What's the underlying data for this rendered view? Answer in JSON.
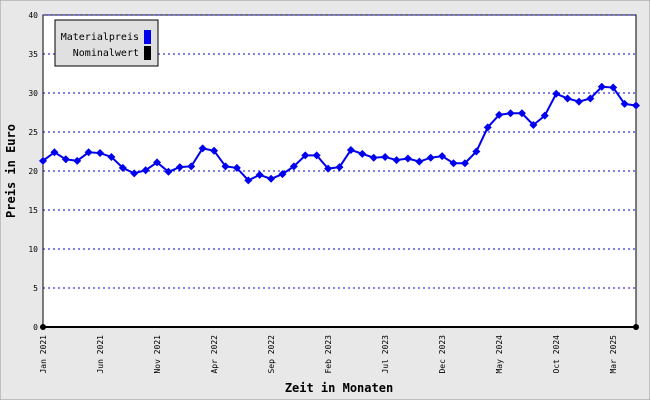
{
  "chart_data": {
    "type": "line",
    "x_label": "Zeit in Monaten",
    "y_label": "Preis in Euro",
    "categories": [
      "Jan 2021",
      null,
      null,
      null,
      null,
      "Jun 2021",
      null,
      null,
      null,
      null,
      "Nov 2021",
      null,
      null,
      null,
      null,
      "Apr 2022",
      null,
      null,
      null,
      null,
      "Sep 2022",
      null,
      null,
      null,
      null,
      "Feb 2023",
      null,
      null,
      null,
      null,
      "Jul 2023",
      null,
      null,
      null,
      null,
      "Dec 2023",
      null,
      null,
      null,
      null,
      "May 2024",
      null,
      null,
      null,
      null,
      "Oct 2024",
      null,
      null,
      null,
      null,
      "Mar 2025",
      null,
      null
    ],
    "series": [
      {
        "name": "Materialpreis",
        "color": "#0000ee",
        "values": [
          21.3,
          22.4,
          21.5,
          21.3,
          22.4,
          22.3,
          21.8,
          20.4,
          19.7,
          20.1,
          21.1,
          19.9,
          20.5,
          20.6,
          22.9,
          22.6,
          20.6,
          20.4,
          18.8,
          19.5,
          19.0,
          19.6,
          20.6,
          22.0,
          22.0,
          20.3,
          20.5,
          22.7,
          22.2,
          21.7,
          21.8,
          21.4,
          21.6,
          21.2,
          21.7,
          21.9,
          21.0,
          21.0,
          22.5,
          25.6,
          27.2,
          27.4,
          27.4,
          25.9,
          27.1,
          29.9,
          29.3,
          28.9,
          29.3,
          30.8,
          30.7,
          28.6,
          28.4
        ]
      },
      {
        "name": "Nominalwert",
        "color": "#000000",
        "values": [
          0,
          0,
          0,
          0,
          0,
          0,
          0,
          0,
          0,
          0,
          0,
          0,
          0,
          0,
          0,
          0,
          0,
          0,
          0,
          0,
          0,
          0,
          0,
          0,
          0,
          0,
          0,
          0,
          0,
          0,
          0,
          0,
          0,
          0,
          0,
          0,
          0,
          0,
          0,
          0,
          0,
          0,
          0,
          0,
          0,
          0,
          0,
          0,
          0,
          0,
          0,
          0,
          0
        ]
      }
    ],
    "ylim": [
      0,
      40
    ],
    "yticks": [
      0,
      5,
      10,
      15,
      20,
      25,
      30,
      35,
      40
    ],
    "grid": true,
    "legend": "top-left"
  }
}
